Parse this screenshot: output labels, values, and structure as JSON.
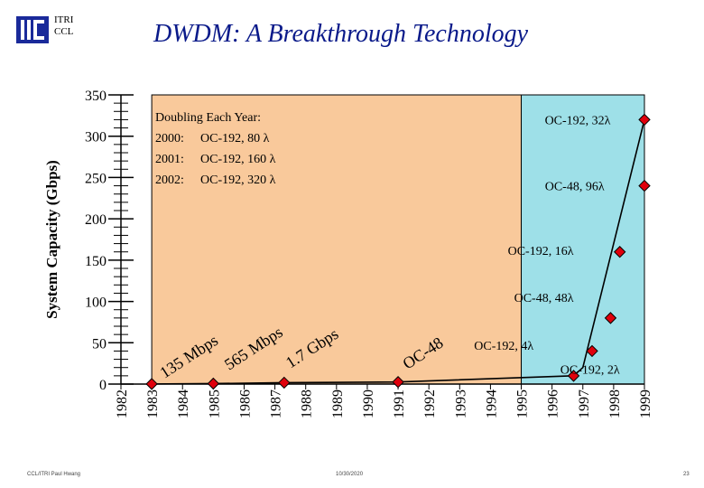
{
  "header": {
    "org_line1": "ITRI",
    "org_line2": "CCL",
    "title": "DWDM:  A Breakthrough Technology"
  },
  "footer": {
    "left": "CCL/ITRI  Paul Hwang",
    "center": "10/30/2020",
    "right": "23"
  },
  "colors": {
    "title": "#0a1a8a",
    "orange_region": "#f9c99b",
    "cyan_region": "#9ee0e8",
    "marker": "#e0000c",
    "logo": "#1a2a9a"
  },
  "chart_data": {
    "type": "line",
    "ylabel": "System Capacity (Gbps)",
    "ylim": [
      0,
      350
    ],
    "yticks": [
      0,
      50,
      100,
      150,
      200,
      250,
      300,
      350
    ],
    "xlim": [
      1982,
      1999
    ],
    "xticks": [
      "1982",
      "1983",
      "1984",
      "1985",
      "1986",
      "1987",
      "1988",
      "1989",
      "1990",
      "1991",
      "1992",
      "1993",
      "1994",
      "1995",
      "1996",
      "1997",
      "1998",
      "1999"
    ],
    "regions": [
      {
        "name": "tdm-era",
        "x_from": 1983,
        "x_to": 1995,
        "color": "#f9c99b"
      },
      {
        "name": "dwdm-era",
        "x_from": 1995,
        "x_to": 1999,
        "color": "#9ee0e8"
      }
    ],
    "series": [
      {
        "name": "capacity",
        "points": [
          {
            "x": 1983,
            "y": 0.135
          },
          {
            "x": 1985,
            "y": 0.565
          },
          {
            "x": 1987.3,
            "y": 1.7
          },
          {
            "x": 1991,
            "y": 2.5
          },
          {
            "x": 1996.7,
            "y": 10
          },
          {
            "x": 1997,
            "y": 20
          },
          {
            "x": 1999,
            "y": 320
          }
        ]
      }
    ],
    "markers": [
      {
        "x": 1983,
        "y": 0.135
      },
      {
        "x": 1985,
        "y": 0.565
      },
      {
        "x": 1987.3,
        "y": 1.7
      },
      {
        "x": 1991,
        "y": 2.5
      },
      {
        "x": 1996.7,
        "y": 10
      },
      {
        "x": 1997.3,
        "y": 40
      },
      {
        "x": 1997.9,
        "y": 80
      },
      {
        "x": 1998.2,
        "y": 160
      },
      {
        "x": 1999,
        "y": 240
      },
      {
        "x": 1999,
        "y": 320
      }
    ],
    "annotations": [
      {
        "text": "OC-192, 32λ",
        "x": 1997.9,
        "y": 320
      },
      {
        "text": "OC-48, 96λ",
        "x": 1997.7,
        "y": 240
      },
      {
        "text": "OC-192, 16λ",
        "x": 1996.7,
        "y": 162
      },
      {
        "text": "OC-48, 48λ",
        "x": 1996.7,
        "y": 105
      },
      {
        "text": "OC-192, 4λ",
        "x": 1995.4,
        "y": 47
      },
      {
        "text": "OC-192, 2λ",
        "x": 1998.2,
        "y": 18
      }
    ],
    "rotated_labels": [
      {
        "text": "135 Mbps",
        "x": 1984.3,
        "y": 28,
        "angle": -33
      },
      {
        "text": "565 Mbps",
        "x": 1986.4,
        "y": 38,
        "angle": -33
      },
      {
        "text": "1.7 Gbps",
        "x": 1988.3,
        "y": 38,
        "angle": -33
      },
      {
        "text": "OC-48",
        "x": 1991.9,
        "y": 32,
        "angle": -33
      }
    ],
    "legend_box": {
      "title": "Doubling Each Year:",
      "rows": [
        {
          "year": "2000:",
          "value": "OC-192, 80 λ"
        },
        {
          "year": "2001:",
          "value": "OC-192, 160 λ"
        },
        {
          "year": "2002:",
          "value": "OC-192, 320 λ"
        }
      ]
    }
  }
}
